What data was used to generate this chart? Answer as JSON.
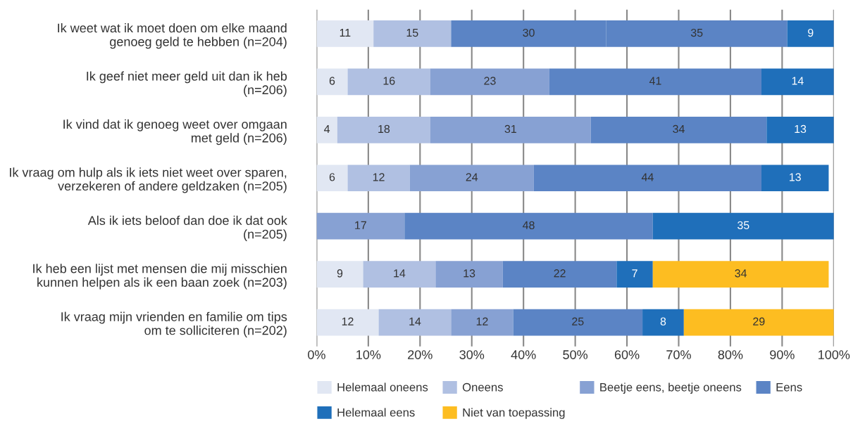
{
  "chart_data": {
    "type": "bar",
    "orientation": "horizontal",
    "stacked": true,
    "data_labels": true,
    "grid": "x",
    "legend": "bottom",
    "categories": [
      "Ik weet wat ik moet doen om elke maand\ngenoeg geld te hebben (n=204)",
      "Ik geef niet meer geld uit dan ik heb\n(n=206)",
      "Ik vind dat ik genoeg weet over omgaan\nmet geld (n=206)",
      "Ik vraag om hulp als ik iets niet weet over sparen,\nverzekeren of andere geldzaken (n=205)",
      "Als ik iets beloof dan doe ik dat ook\n(n=205)",
      "Ik heb een lijst met mensen die mij misschien\nkunnen helpen als ik een baan zoek (n=203)",
      "Ik vraag mijn vrienden en familie om tips\nom te solliciteren (n=202)"
    ],
    "series": [
      {
        "name": "Helemaal oneens",
        "color": "#e1e7f3",
        "values": [
          11,
          6,
          4,
          6,
          null,
          9,
          12
        ]
      },
      {
        "name": "Oneens",
        "color": "#b0c0e2",
        "values": [
          15,
          16,
          18,
          12,
          null,
          14,
          14
        ]
      },
      {
        "name": "Beetje eens, beetje oneens",
        "color": "#87a1d3",
        "colors": [
          "#5b84c5",
          "#87a1d3",
          "#87a1d3",
          "#87a1d3",
          "#87a1d3",
          "#87a1d3",
          "#87a1d3"
        ],
        "values": [
          30,
          23,
          31,
          24,
          17,
          13,
          12
        ]
      },
      {
        "name": "Eens",
        "color": "#5b84c5",
        "values": [
          35,
          41,
          34,
          44,
          48,
          22,
          25
        ]
      },
      {
        "name": "Helemaal eens",
        "color": "#1f6fba",
        "values": [
          9,
          14,
          13,
          13,
          35,
          7,
          8
        ]
      },
      {
        "name": "Niet van toepassing",
        "color": "#fdbd21",
        "values": [
          null,
          null,
          null,
          null,
          null,
          34,
          29
        ]
      }
    ],
    "xlim": [
      0,
      100
    ],
    "xticks": [
      {
        "value": 0,
        "label": "0%"
      },
      {
        "value": 10,
        "label": "10%"
      },
      {
        "value": 20,
        "label": "20%"
      },
      {
        "value": 30,
        "label": "30%"
      },
      {
        "value": 40,
        "label": "40%"
      },
      {
        "value": 50,
        "label": "50%"
      },
      {
        "value": 60,
        "label": "60%"
      },
      {
        "value": 70,
        "label": "70%"
      },
      {
        "value": 80,
        "label": "80%"
      },
      {
        "value": 90,
        "label": "90%"
      },
      {
        "value": 100,
        "label": "100%"
      }
    ]
  }
}
